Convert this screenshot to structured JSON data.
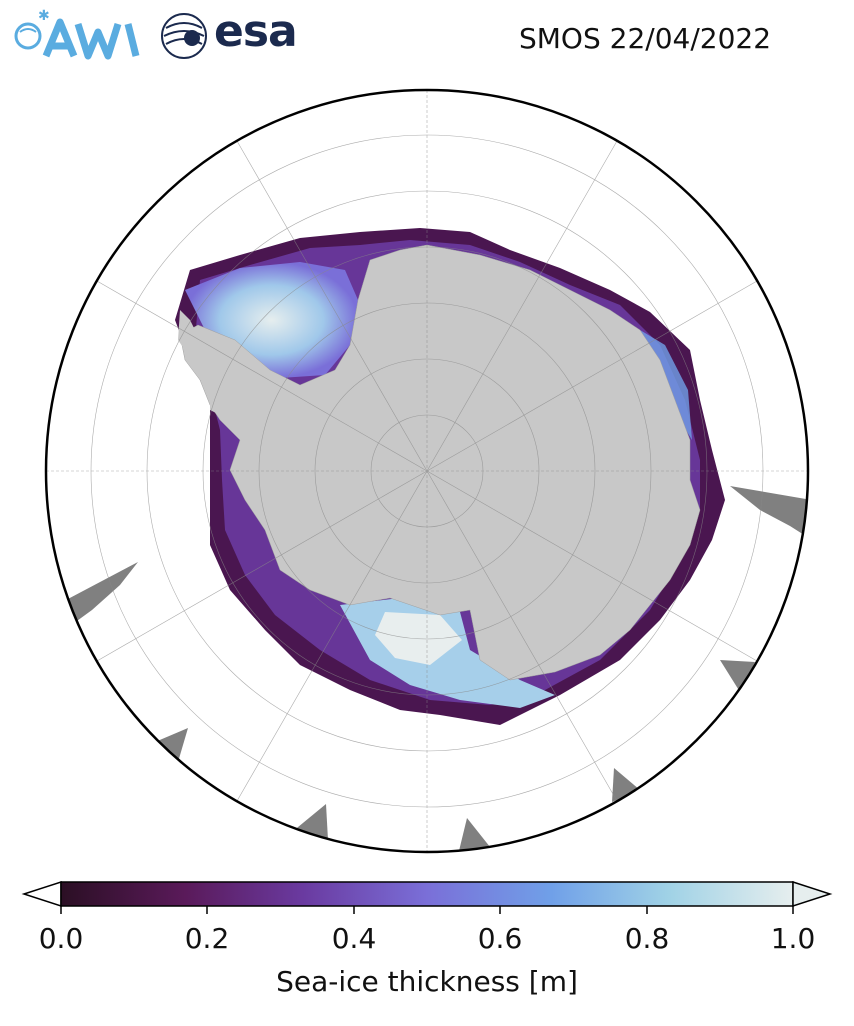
{
  "title": "SMOS 22/04/2022",
  "logos": {
    "awi": {
      "text": "AWI",
      "color": "#5aace0"
    },
    "esa": {
      "text": "esa",
      "color": "#1b2a4e"
    }
  },
  "map": {
    "projection": "south-polar-stereographic",
    "land_color": "#c8c8c8",
    "no_data_color": "#808080",
    "ocean_color": "#ffffff"
  },
  "colorbar": {
    "label": "Sea-ice thickness [m]",
    "min": 0.0,
    "max": 1.0,
    "extend": "both",
    "ticks": [
      "0.0",
      "0.2",
      "0.4",
      "0.6",
      "0.8",
      "1.0"
    ],
    "colors": [
      "#2b0f24",
      "#5a1a5a",
      "#6a3aa0",
      "#7a6fd8",
      "#70a0e8",
      "#a0d2e6",
      "#e6eeee"
    ]
  }
}
